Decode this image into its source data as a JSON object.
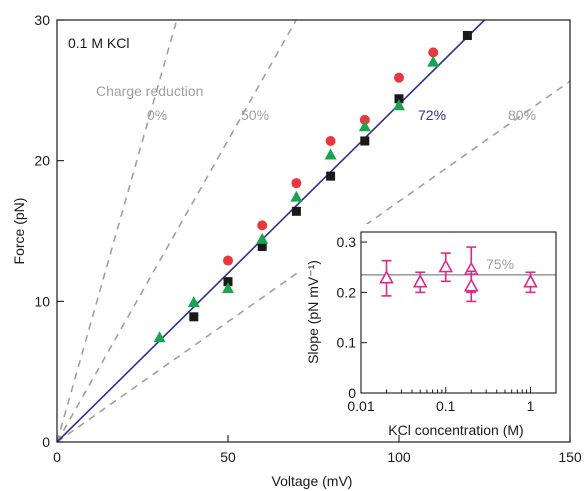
{
  "chart_data": [
    {
      "type": "scatter",
      "title": "",
      "xlabel": "Voltage (mV)",
      "ylabel": "Force (pN)",
      "xlim": [
        0,
        150
      ],
      "ylim": [
        0,
        30
      ],
      "xticks": [
        0,
        50,
        100,
        150
      ],
      "yticks": [
        0,
        10,
        20,
        30
      ],
      "grid": false,
      "corner_label": "0.1 M KCl",
      "series": [
        {
          "marker": "circle",
          "color": "#e8383d",
          "x": [
            50,
            60,
            70,
            80,
            90,
            100,
            110
          ],
          "y": [
            12.9,
            15.4,
            18.4,
            21.4,
            22.9,
            25.9,
            27.7
          ]
        },
        {
          "marker": "square",
          "color": "#1a1a1a",
          "x": [
            40,
            50,
            60,
            70,
            80,
            90,
            100,
            120
          ],
          "y": [
            8.9,
            11.4,
            13.9,
            16.4,
            18.9,
            21.4,
            24.4,
            28.9
          ]
        },
        {
          "marker": "triangle",
          "color": "#1aa351",
          "x": [
            30,
            40,
            50,
            60,
            70,
            80,
            90,
            100,
            110
          ],
          "y": [
            7.4,
            9.9,
            10.9,
            14.4,
            17.4,
            20.4,
            22.4,
            23.9,
            27.0
          ]
        }
      ],
      "fit_line": {
        "label": "72%",
        "color": "#2e3192",
        "slope": 0.24,
        "x": [
          0,
          125
        ],
        "y": [
          0,
          30
        ]
      },
      "reference_lines": {
        "heading": "Charge reduction",
        "color": "#a0a0a0",
        "lines": [
          {
            "label": "0%",
            "slope": 0.857
          },
          {
            "label": "50%",
            "slope": 0.429
          },
          {
            "label": "80%",
            "slope": 0.171
          }
        ]
      }
    },
    {
      "type": "scatter",
      "title": "",
      "xlabel": "KCl concentration (M)",
      "ylabel": "Slope (pN mV⁻¹)",
      "xscale": "log",
      "xlim": [
        0.01,
        2
      ],
      "ylim": [
        0,
        0.32
      ],
      "xticks": [
        0.01,
        0.1,
        1
      ],
      "xtick_labels": [
        "0.01",
        "0.1",
        "1"
      ],
      "yticks": [
        0,
        0.1,
        0.2,
        0.3
      ],
      "ytick_labels": [
        "0",
        "0.1",
        "0.2",
        "0.3"
      ],
      "reference": {
        "label": "75%",
        "value": 0.235,
        "color": "#a0a0a0"
      },
      "series": [
        {
          "marker": "open-triangle",
          "color": "#e0288a",
          "x": [
            0.02,
            0.05,
            0.1,
            0.2,
            0.2,
            1.0
          ],
          "y": [
            0.228,
            0.22,
            0.25,
            0.245,
            0.212,
            0.22
          ],
          "err": [
            0.035,
            0.02,
            0.028,
            0.045,
            0.03,
            0.02
          ]
        }
      ]
    }
  ]
}
